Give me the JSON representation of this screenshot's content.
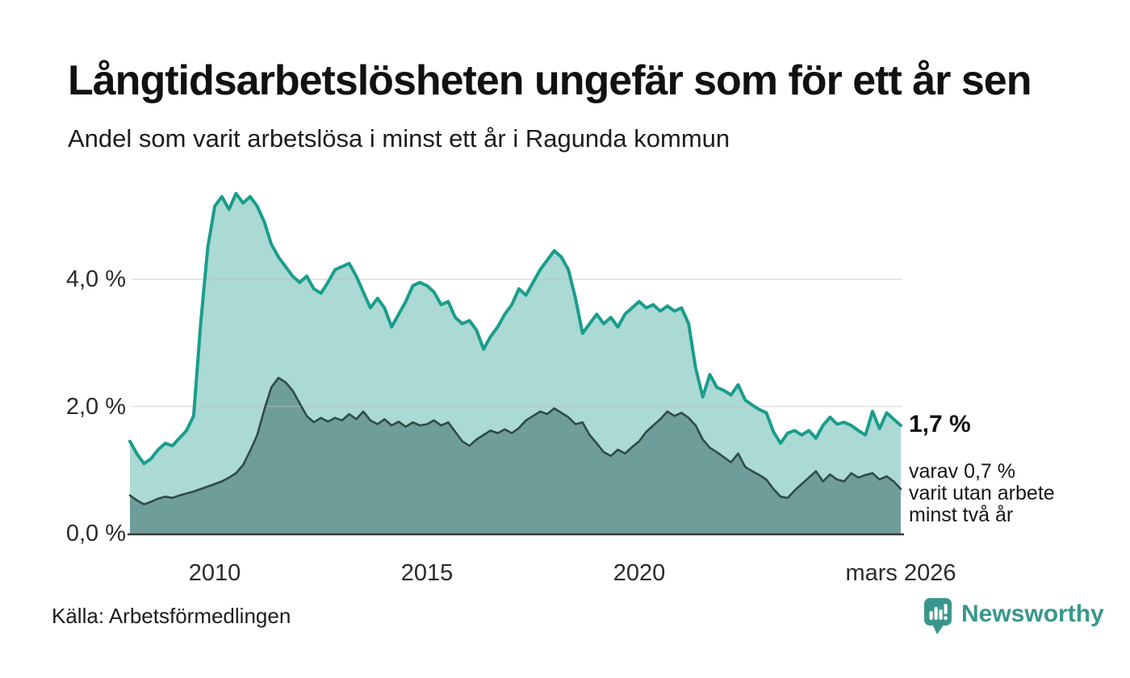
{
  "header": {
    "title": "Långtidsarbetslösheten ungefär som för ett år sen",
    "subtitle": "Andel som varit arbetslösa i minst ett år i Ragunda kommun"
  },
  "annotations": {
    "latest_total": "1,7 %",
    "breakdown": [
      "varav 0,7 %",
      "varit utan arbete",
      "minst två år"
    ]
  },
  "footer": {
    "source": "Källa: Arbetsförmedlingen",
    "brand": "Newsworthy"
  },
  "colors": {
    "line_one_year": "#1a9d8d",
    "fill_one_year": "#abd9d3",
    "line_two_year": "#2f4b46",
    "fill_two_year": "#6f9d99",
    "gridline": "#bfbfbf",
    "axis_baseline": "#3a3a3a",
    "brand_teal": "#3a968c"
  },
  "chart_data": {
    "type": "area",
    "title": "Långtidsarbetslösheten ungefär som för ett år sen",
    "subtitle": "Andel som varit arbetslösa i minst ett år i Ragunda kommun",
    "unit": "%",
    "x_start": 2008.0,
    "x_step_years": 0.1666667,
    "xlim": [
      2008.0,
      2026.25
    ],
    "ylim": [
      0,
      5.6
    ],
    "grid": true,
    "legend_position": "right-annotations",
    "yticks": [
      {
        "label": "4,0 %",
        "value": 4.0
      },
      {
        "label": "2,0 %",
        "value": 2.0
      },
      {
        "label": "0,0 %",
        "value": 0.0
      }
    ],
    "xticks": [
      {
        "label": "2010",
        "t": 2010.0
      },
      {
        "label": "2015",
        "t": 2015.0
      },
      {
        "label": "2020",
        "t": 2020.0
      },
      {
        "label": "mars 2026",
        "t": 2026.1666667
      }
    ],
    "series": [
      {
        "name": "Arbetslösa minst ett år",
        "color": "#1a9d8d",
        "fill": "#abd9d3",
        "stroke_width": 4,
        "latest_value": 1.7,
        "values": [
          1.45,
          1.25,
          1.1,
          1.18,
          1.32,
          1.42,
          1.38,
          1.5,
          1.62,
          1.85,
          3.3,
          4.5,
          5.15,
          5.3,
          5.1,
          5.35,
          5.2,
          5.3,
          5.15,
          4.9,
          4.55,
          4.35,
          4.2,
          4.05,
          3.95,
          4.05,
          3.85,
          3.78,
          3.95,
          4.15,
          4.2,
          4.25,
          4.05,
          3.8,
          3.55,
          3.7,
          3.55,
          3.25,
          3.45,
          3.65,
          3.9,
          3.95,
          3.9,
          3.8,
          3.6,
          3.65,
          3.4,
          3.3,
          3.35,
          3.2,
          2.9,
          3.1,
          3.25,
          3.45,
          3.6,
          3.85,
          3.75,
          3.95,
          4.15,
          4.3,
          4.45,
          4.35,
          4.15,
          3.7,
          3.15,
          3.3,
          3.45,
          3.3,
          3.4,
          3.25,
          3.45,
          3.55,
          3.65,
          3.55,
          3.6,
          3.5,
          3.58,
          3.5,
          3.55,
          3.3,
          2.6,
          2.15,
          2.5,
          2.3,
          2.25,
          2.18,
          2.34,
          2.1,
          2.02,
          1.95,
          1.9,
          1.6,
          1.42,
          1.58,
          1.62,
          1.55,
          1.62,
          1.5,
          1.7,
          1.83,
          1.72,
          1.75,
          1.7,
          1.62,
          1.55,
          1.92,
          1.65,
          1.9,
          1.8,
          1.7
        ]
      },
      {
        "name": "Varav arbetslösa minst två år",
        "color": "#2f4b46",
        "fill": "#6f9d99",
        "stroke_width": 2.6,
        "latest_value": 0.7,
        "values": [
          0.6,
          0.52,
          0.46,
          0.5,
          0.55,
          0.58,
          0.56,
          0.6,
          0.63,
          0.66,
          0.7,
          0.74,
          0.78,
          0.82,
          0.88,
          0.95,
          1.08,
          1.3,
          1.55,
          1.95,
          2.3,
          2.45,
          2.38,
          2.25,
          2.05,
          1.85,
          1.75,
          1.82,
          1.76,
          1.82,
          1.78,
          1.88,
          1.8,
          1.92,
          1.78,
          1.72,
          1.8,
          1.7,
          1.76,
          1.68,
          1.75,
          1.7,
          1.72,
          1.78,
          1.7,
          1.75,
          1.6,
          1.45,
          1.38,
          1.48,
          1.55,
          1.62,
          1.58,
          1.64,
          1.58,
          1.66,
          1.78,
          1.85,
          1.92,
          1.88,
          1.97,
          1.9,
          1.83,
          1.72,
          1.75,
          1.55,
          1.42,
          1.28,
          1.22,
          1.32,
          1.26,
          1.36,
          1.45,
          1.6,
          1.7,
          1.8,
          1.92,
          1.85,
          1.9,
          1.82,
          1.7,
          1.48,
          1.35,
          1.28,
          1.2,
          1.12,
          1.26,
          1.05,
          0.98,
          0.92,
          0.85,
          0.7,
          0.58,
          0.56,
          0.68,
          0.78,
          0.88,
          0.98,
          0.82,
          0.93,
          0.85,
          0.82,
          0.95,
          0.88,
          0.92,
          0.95,
          0.85,
          0.9,
          0.82,
          0.7
        ]
      }
    ]
  }
}
